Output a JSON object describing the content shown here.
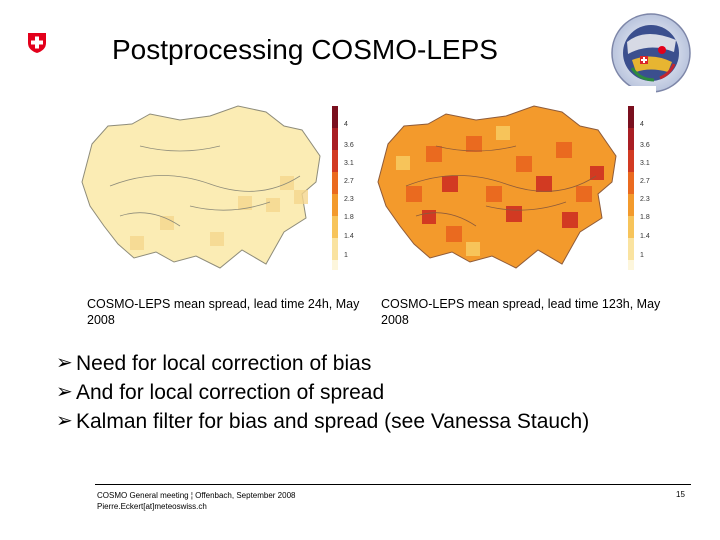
{
  "title": "Postprocessing COSMO-LEPS",
  "logos": {
    "left": "swiss-cross-logo",
    "right": "cosmo-consortium-logo"
  },
  "maps": [
    {
      "caption": "COSMO-LEPS mean spread, lead time 24h, May 2008",
      "colorbar_labels": [
        "4",
        "3.6",
        "3.1",
        "2.7",
        "2.3",
        "1.8",
        "1.4",
        "1"
      ]
    },
    {
      "caption": "COSMO-LEPS mean spread, lead time 123h, May 2008",
      "colorbar_labels": [
        "4",
        "3.6",
        "3.1",
        "2.7",
        "2.3",
        "1.8",
        "1.4",
        "1"
      ]
    }
  ],
  "colorbar_colors": [
    "#7a0f1e",
    "#a91e24",
    "#d23a22",
    "#ea6a1f",
    "#f39a2c",
    "#f7c45a",
    "#fae3a0",
    "#fdf6dc"
  ],
  "bullets": [
    "Need for local correction of bias",
    "And for local correction of spread",
    "Kalman filter for bias and spread (see Vanessa Stauch)"
  ],
  "footer": {
    "line1": "COSMO General meeting ¦ Offenbach, September 2008",
    "line2": "Pierre.Eckert[at]meteoswiss.ch",
    "page": "15"
  }
}
